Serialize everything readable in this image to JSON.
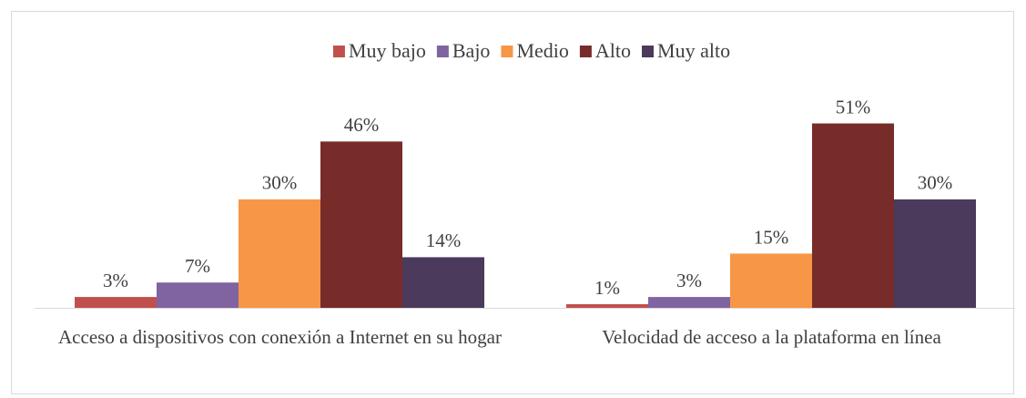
{
  "chart_data": {
    "type": "bar",
    "categories": [
      "Acceso a dispositivos con conexión a Internet en su hogar",
      "Velocidad de acceso a la plataforma en línea"
    ],
    "series": [
      {
        "name": "Muy bajo",
        "color": "#c0504d",
        "values": [
          3,
          1
        ],
        "value_labels": [
          "3%",
          "1%"
        ]
      },
      {
        "name": "Bajo",
        "color": "#8064a2",
        "values": [
          7,
          3
        ],
        "value_labels": [
          "7%",
          "3%"
        ]
      },
      {
        "name": "Medio",
        "color": "#f79646",
        "values": [
          30,
          15
        ],
        "value_labels": [
          "30%",
          "15%"
        ]
      },
      {
        "name": "Alto",
        "color": "#772c2a",
        "values": [
          46,
          51
        ],
        "value_labels": [
          "46%",
          "51%"
        ]
      },
      {
        "name": "Muy alto",
        "color": "#4b3a5c",
        "values": [
          14,
          30
        ],
        "value_labels": [
          "14%",
          "30%"
        ]
      }
    ],
    "legend": "top"
  }
}
